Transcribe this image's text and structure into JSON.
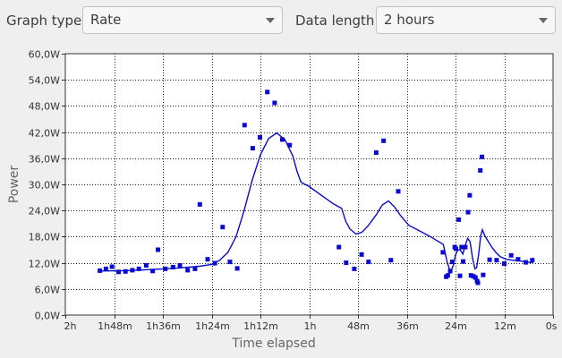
{
  "controls": {
    "graph_type_label": "Graph type:",
    "graph_type_value": "Rate",
    "data_length_label": "Data length:",
    "data_length_value": "2 hours"
  },
  "colors": {
    "series": "#0a0ad2",
    "background": "#efefef",
    "plot_bg": "#ffffff"
  },
  "chart_data": {
    "type": "scatter",
    "xlabel": "Time elapsed",
    "ylabel": "Power",
    "xlim": [
      120,
      0
    ],
    "ylim": [
      0,
      60
    ],
    "grid": true,
    "x_ticks": [
      {
        "v": 120,
        "label": "2h"
      },
      {
        "v": 108,
        "label": "1h48m"
      },
      {
        "v": 96,
        "label": "1h36m"
      },
      {
        "v": 84,
        "label": "1h24m"
      },
      {
        "v": 72,
        "label": "1h12m"
      },
      {
        "v": 60,
        "label": "1h"
      },
      {
        "v": 48,
        "label": "48m"
      },
      {
        "v": 36,
        "label": "36m"
      },
      {
        "v": 24,
        "label": "24m"
      },
      {
        "v": 12,
        "label": "12m"
      },
      {
        "v": 0,
        "label": "0s"
      }
    ],
    "y_ticks": [
      {
        "v": 0,
        "label": "0,0W"
      },
      {
        "v": 6,
        "label": "6,0W"
      },
      {
        "v": 12,
        "label": "12,0W"
      },
      {
        "v": 18,
        "label": "18,0W"
      },
      {
        "v": 24,
        "label": "24,0W"
      },
      {
        "v": 30,
        "label": "30,0W"
      },
      {
        "v": 36,
        "label": "36,0W"
      },
      {
        "v": 42,
        "label": "42,0W"
      },
      {
        "v": 48,
        "label": "48,0W"
      },
      {
        "v": 54,
        "label": "54,0W"
      },
      {
        "v": 60,
        "label": "60,0W"
      }
    ],
    "points": [
      [
        111.5,
        10.2
      ],
      [
        110,
        10.6
      ],
      [
        108.5,
        11.1
      ],
      [
        106.9,
        9.9
      ],
      [
        105.2,
        10.0
      ],
      [
        103.5,
        10.3
      ],
      [
        101.9,
        10.6
      ],
      [
        100.1,
        11.4
      ],
      [
        98.5,
        10.1
      ],
      [
        97.2,
        15.0
      ],
      [
        95.4,
        10.6
      ],
      [
        93.5,
        11.0
      ],
      [
        91.8,
        11.4
      ],
      [
        89.9,
        10.3
      ],
      [
        88.1,
        10.6
      ],
      [
        86.9,
        25.4
      ],
      [
        85,
        12.8
      ],
      [
        83.2,
        11.9
      ],
      [
        81.3,
        20.2
      ],
      [
        79.5,
        12.2
      ],
      [
        77.7,
        10.7
      ],
      [
        75.9,
        43.6
      ],
      [
        73.9,
        38.3
      ],
      [
        72.1,
        40.8
      ],
      [
        70.3,
        51.2
      ],
      [
        68.5,
        48.7
      ],
      [
        66.6,
        40.3
      ],
      [
        64.8,
        39.0
      ],
      [
        52.7,
        15.6
      ],
      [
        50.9,
        12.0
      ],
      [
        48.9,
        10.6
      ],
      [
        47.1,
        13.9
      ],
      [
        45.4,
        12.2
      ],
      [
        43.5,
        37.3
      ],
      [
        41.7,
        40.0
      ],
      [
        39.9,
        12.6
      ],
      [
        38.1,
        28.4
      ],
      [
        27.1,
        14.4
      ],
      [
        26.3,
        8.8
      ],
      [
        25.9,
        9.1
      ],
      [
        25.3,
        10.1
      ],
      [
        24.8,
        12.2
      ],
      [
        24.2,
        15.6
      ],
      [
        23.9,
        15.2
      ],
      [
        23.2,
        21.9
      ],
      [
        22.9,
        9.0
      ],
      [
        22.5,
        15.6
      ],
      [
        22.1,
        12.3
      ],
      [
        21.6,
        15.6
      ],
      [
        20.9,
        23.6
      ],
      [
        20.5,
        27.5
      ],
      [
        20.2,
        9.1
      ],
      [
        19.6,
        8.9
      ],
      [
        19.1,
        8.6
      ],
      [
        18.7,
        7.8
      ],
      [
        18.5,
        7.4
      ],
      [
        17.9,
        33.2
      ],
      [
        17.5,
        36.3
      ],
      [
        17.2,
        9.2
      ],
      [
        15.6,
        12.7
      ],
      [
        13.9,
        12.6
      ],
      [
        12.0,
        11.8
      ],
      [
        10.3,
        13.7
      ],
      [
        8.6,
        12.8
      ],
      [
        6.7,
        12.1
      ],
      [
        5.1,
        12.6
      ]
    ],
    "trend": [
      [
        111.5,
        10.1
      ],
      [
        105,
        10.2
      ],
      [
        98,
        10.5
      ],
      [
        92,
        10.8
      ],
      [
        87,
        11.2
      ],
      [
        84,
        11.6
      ],
      [
        82,
        12.6
      ],
      [
        80,
        14.4
      ],
      [
        78,
        18.0
      ],
      [
        76,
        24.0
      ],
      [
        74,
        31.0
      ],
      [
        72,
        36.8
      ],
      [
        70,
        40.5
      ],
      [
        68,
        41.8
      ],
      [
        66,
        40.3
      ],
      [
        64,
        36.5
      ],
      [
        63,
        33.0
      ],
      [
        62,
        30.5
      ],
      [
        60,
        29.5
      ],
      [
        57,
        27.5
      ],
      [
        54,
        25.5
      ],
      [
        52,
        24.5
      ],
      [
        51,
        21.5
      ],
      [
        50,
        19.8
      ],
      [
        48.5,
        18.6
      ],
      [
        47,
        19.0
      ],
      [
        45.5,
        20.5
      ],
      [
        43.5,
        23.0
      ],
      [
        42,
        25.3
      ],
      [
        40.5,
        26.2
      ],
      [
        39,
        24.8
      ],
      [
        37.5,
        22.8
      ],
      [
        35.5,
        20.6
      ],
      [
        33,
        19.4
      ],
      [
        30,
        17.9
      ],
      [
        27,
        16.2
      ],
      [
        26,
        12.0
      ],
      [
        25.2,
        9.8
      ],
      [
        24.5,
        11.5
      ],
      [
        24,
        13.8
      ],
      [
        23.4,
        15.0
      ],
      [
        22.8,
        14.9
      ],
      [
        22.2,
        14.0
      ],
      [
        21.6,
        16.0
      ],
      [
        21,
        17.6
      ],
      [
        20.4,
        16.8
      ],
      [
        19.8,
        13.0
      ],
      [
        19.2,
        10.6
      ],
      [
        18.8,
        10.9
      ],
      [
        18.3,
        14.0
      ],
      [
        17.8,
        18.2
      ],
      [
        17.4,
        19.6
      ],
      [
        16.8,
        18.2
      ],
      [
        16,
        17.0
      ],
      [
        15,
        15.5
      ],
      [
        14,
        14.3
      ],
      [
        13,
        13.4
      ],
      [
        11.5,
        12.8
      ],
      [
        10,
        12.6
      ],
      [
        8,
        12.4
      ],
      [
        6,
        12.1
      ],
      [
        5,
        12.0
      ]
    ]
  }
}
